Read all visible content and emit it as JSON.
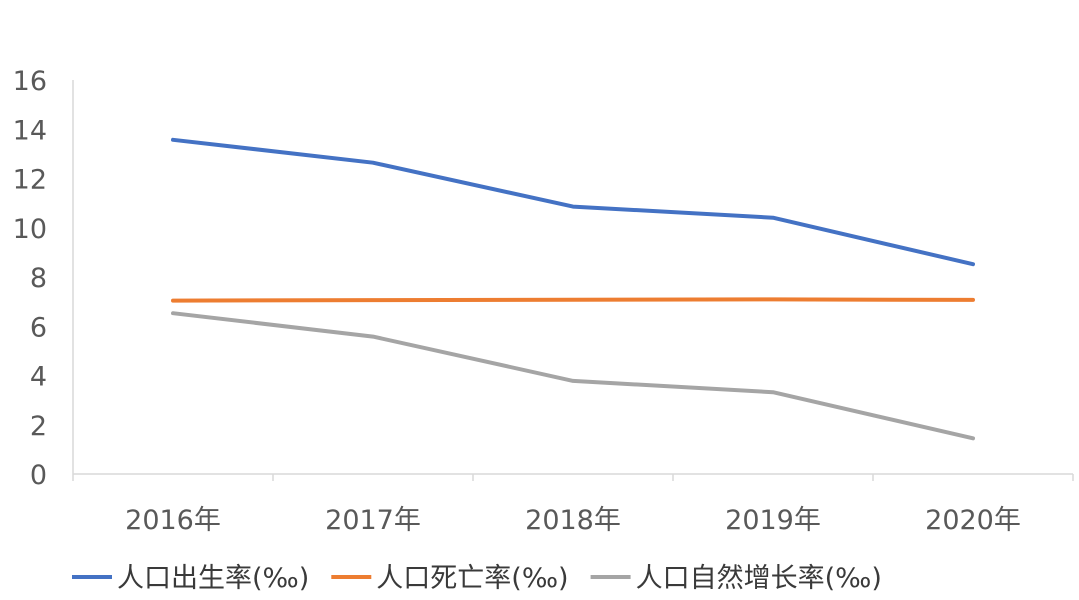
{
  "chart_data": {
    "type": "line",
    "title": "",
    "xlabel": "",
    "ylabel": "",
    "categories": [
      "2016年",
      "2017年",
      "2018年",
      "2019年",
      "2020年"
    ],
    "ylim": [
      0,
      16
    ],
    "yticks": [
      0,
      2,
      4,
      6,
      8,
      10,
      12,
      14,
      16
    ],
    "grid": false,
    "legend_position": "bottom",
    "series": [
      {
        "name": "人口出生率(‰)",
        "color": "#4472C4",
        "values": [
          13.57,
          12.64,
          10.86,
          10.41,
          8.52
        ]
      },
      {
        "name": "人口死亡率(‰)",
        "color": "#ED7D31",
        "values": [
          7.04,
          7.06,
          7.08,
          7.09,
          7.07
        ]
      },
      {
        "name": "人口自然增长率(‰)",
        "color": "#A5A5A5",
        "values": [
          6.53,
          5.58,
          3.78,
          3.32,
          1.45
        ]
      }
    ]
  }
}
